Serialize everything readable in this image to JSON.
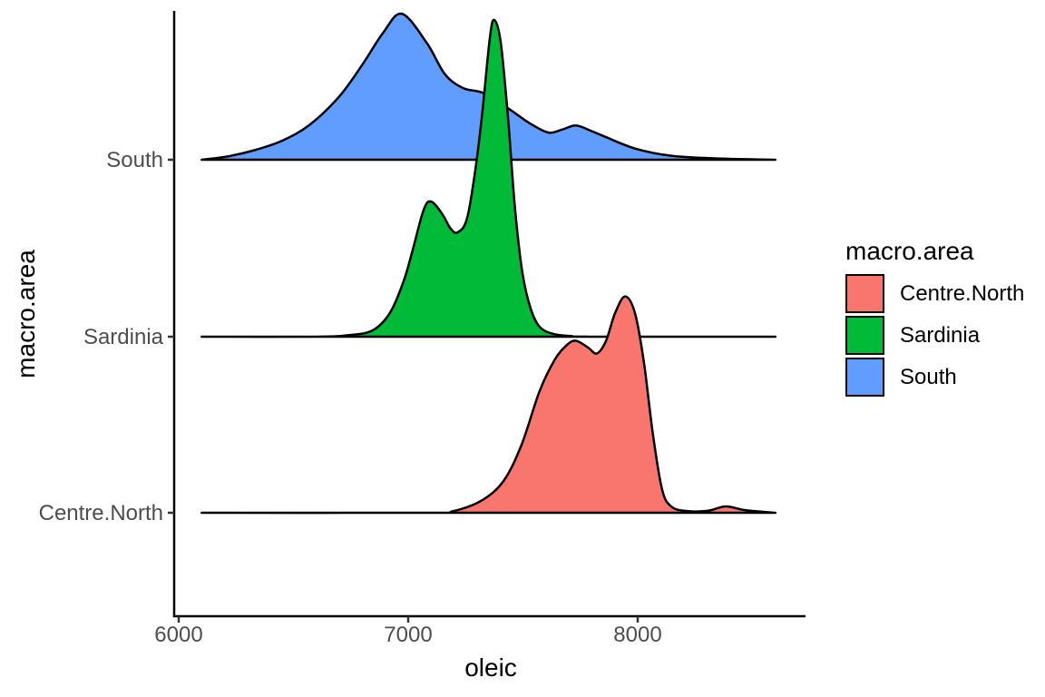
{
  "chart_data": {
    "type": "area",
    "variant": "ridgeline-density-plot",
    "title": "",
    "xlabel": "oleic",
    "ylabel": "macro.area",
    "x_ticks": [
      6000,
      7000,
      8000
    ],
    "x_range": [
      5970,
      8740
    ],
    "y_ticks": [
      "South",
      "Sardinia",
      "Centre.North"
    ],
    "grid": "off",
    "background": "#ffffff",
    "axis_color": "#000000",
    "tick_label_color": "#4d4d4d",
    "outline_color": "#000000",
    "height_scale_note": "heights are density values relative to the tallest peak (Sardinia at oleic 7375 = 1.0)",
    "legend": {
      "title": "macro.area",
      "position": "right",
      "entries": [
        {
          "label": "Centre.North",
          "color": "#F8766D"
        },
        {
          "label": "Sardinia",
          "color": "#00BA38"
        },
        {
          "label": "South",
          "color": "#619CFF"
        }
      ]
    },
    "series": [
      {
        "name": "South",
        "color": "#619CFF",
        "points": [
          [
            6100,
            0
          ],
          [
            6210,
            0.01
          ],
          [
            6330,
            0.03
          ],
          [
            6450,
            0.06
          ],
          [
            6570,
            0.11
          ],
          [
            6700,
            0.2
          ],
          [
            6800,
            0.3
          ],
          [
            6890,
            0.4
          ],
          [
            6972,
            0.461
          ],
          [
            7080,
            0.37
          ],
          [
            7160,
            0.27
          ],
          [
            7240,
            0.226
          ],
          [
            7330,
            0.21
          ],
          [
            7440,
            0.16
          ],
          [
            7530,
            0.115
          ],
          [
            7610,
            0.086
          ],
          [
            7670,
            0.095
          ],
          [
            7731,
            0.108
          ],
          [
            7800,
            0.09
          ],
          [
            7850,
            0.075
          ],
          [
            7990,
            0.035
          ],
          [
            8150,
            0.012
          ],
          [
            8350,
            0.004
          ],
          [
            8600,
            0
          ]
        ]
      },
      {
        "name": "Sardinia",
        "color": "#00BA38",
        "points": [
          [
            6100,
            0
          ],
          [
            6600,
            0
          ],
          [
            6740,
            0.005
          ],
          [
            6845,
            0.02
          ],
          [
            6920,
            0.075
          ],
          [
            6980,
            0.175
          ],
          [
            7020,
            0.275
          ],
          [
            7067,
            0.4
          ],
          [
            7099,
            0.427
          ],
          [
            7146,
            0.39
          ],
          [
            7186,
            0.34
          ],
          [
            7217,
            0.33
          ],
          [
            7257,
            0.375
          ],
          [
            7296,
            0.545
          ],
          [
            7324,
            0.715
          ],
          [
            7356,
            0.945
          ],
          [
            7375,
            1.0
          ],
          [
            7403,
            0.93
          ],
          [
            7435,
            0.69
          ],
          [
            7466,
            0.4
          ],
          [
            7498,
            0.2
          ],
          [
            7534,
            0.088
          ],
          [
            7573,
            0.031
          ],
          [
            7632,
            0.009
          ],
          [
            7711,
            0.002
          ],
          [
            7800,
            0
          ],
          [
            8600,
            0
          ]
        ]
      },
      {
        "name": "Centre.North",
        "color": "#F8766D",
        "points": [
          [
            6100,
            0
          ],
          [
            7100,
            0
          ],
          [
            7190,
            0.004
          ],
          [
            7316,
            0.037
          ],
          [
            7415,
            0.1
          ],
          [
            7494,
            0.215
          ],
          [
            7573,
            0.385
          ],
          [
            7640,
            0.485
          ],
          [
            7692,
            0.53
          ],
          [
            7731,
            0.543
          ],
          [
            7783,
            0.522
          ],
          [
            7822,
            0.503
          ],
          [
            7862,
            0.543
          ],
          [
            7901,
            0.63
          ],
          [
            7945,
            0.683
          ],
          [
            7988,
            0.63
          ],
          [
            8028,
            0.47
          ],
          [
            8067,
            0.243
          ],
          [
            8107,
            0.071
          ],
          [
            8146,
            0.02
          ],
          [
            8206,
            0.006
          ],
          [
            8304,
            0.006
          ],
          [
            8383,
            0.02
          ],
          [
            8462,
            0.009
          ],
          [
            8560,
            0.002
          ],
          [
            8600,
            0
          ]
        ]
      }
    ]
  }
}
